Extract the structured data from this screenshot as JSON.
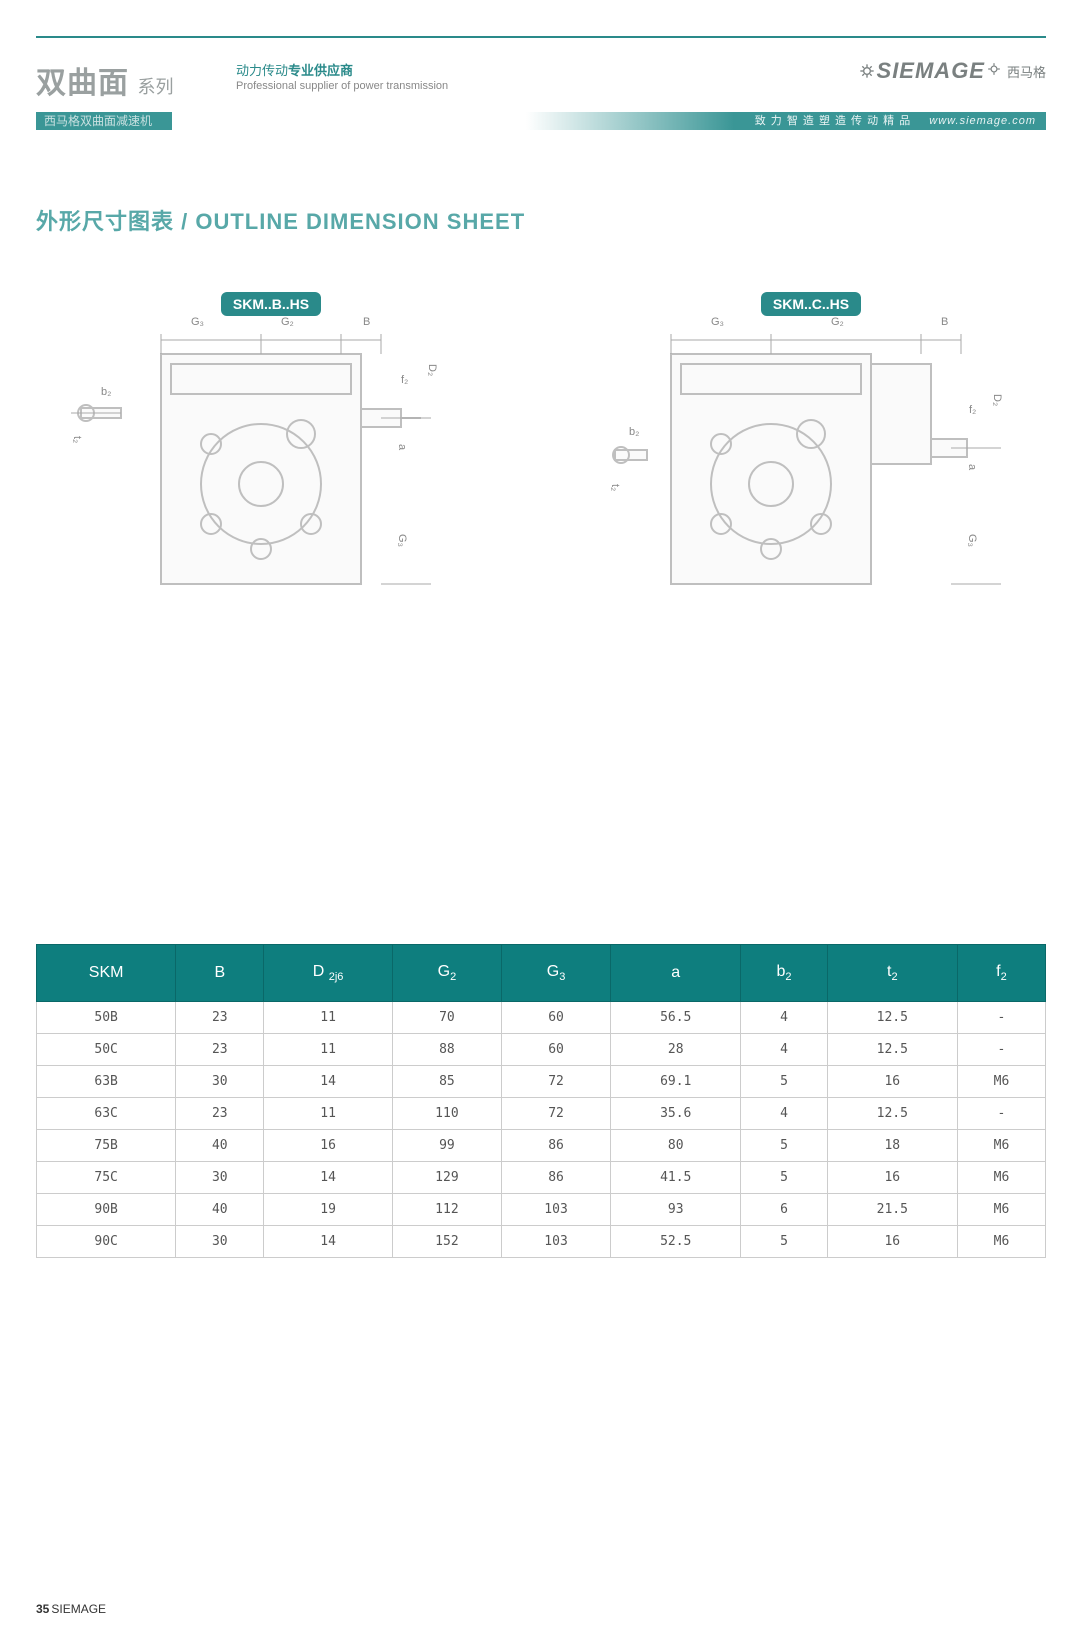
{
  "header": {
    "series_main_cn": "双曲面",
    "series_sub_cn": "系列",
    "tagline_cn_pre": "动力传动",
    "tagline_cn_bold": "专业供应商",
    "tagline_en": "Professional supplier of power transmission",
    "banner_left_cn": "西马格双曲面减速机",
    "banner_right_cn": "致 力 智 造 塑 造 传 动 精 品",
    "banner_url": "www.siemage.com",
    "logo_text": "SIEMAGE",
    "logo_cn": "西马格"
  },
  "title": "外形尺寸图表 / OUTLINE DIMENSION SHEET",
  "diagrams": {
    "labels": {
      "left_badge": "SKM..B..HS",
      "right_badge": "SKM..C..HS",
      "G3": "G₃",
      "G2": "G₂",
      "B": "B",
      "b2": "b₂",
      "t2": "t₂",
      "f2": "f₂",
      "D2": "D₂",
      "a": "a",
      "G3_v": "G₃"
    }
  },
  "table": {
    "columns": [
      "SKM",
      "B",
      "D <sub>2j6</sub>",
      "G<sub>2</sub>",
      "G<sub>3</sub>",
      "a",
      "b<sub>2</sub>",
      "t<sub>2</sub>",
      "f<sub>2</sub>"
    ],
    "rows": [
      [
        "50B",
        "23",
        "11",
        "70",
        "60",
        "56.5",
        "4",
        "12.5",
        "-"
      ],
      [
        "50C",
        "23",
        "11",
        "88",
        "60",
        "28",
        "4",
        "12.5",
        "-"
      ],
      [
        "63B",
        "30",
        "14",
        "85",
        "72",
        "69.1",
        "5",
        "16",
        "M6"
      ],
      [
        "63C",
        "23",
        "11",
        "110",
        "72",
        "35.6",
        "4",
        "12.5",
        "-"
      ],
      [
        "75B",
        "40",
        "16",
        "99",
        "86",
        "80",
        "5",
        "18",
        "M6"
      ],
      [
        "75C",
        "30",
        "14",
        "129",
        "86",
        "41.5",
        "5",
        "16",
        "M6"
      ],
      [
        "90B",
        "40",
        "19",
        "112",
        "103",
        "93",
        "6",
        "21.5",
        "M6"
      ],
      [
        "90C",
        "30",
        "14",
        "152",
        "103",
        "52.5",
        "5",
        "16",
        "M6"
      ]
    ]
  },
  "footer": {
    "page_number": "35",
    "brand": "SIEMAGE"
  },
  "colors": {
    "teal": "#2a8a8a",
    "teal_dark": "#0e7e7e",
    "gray_line": "#cfcfcf"
  }
}
